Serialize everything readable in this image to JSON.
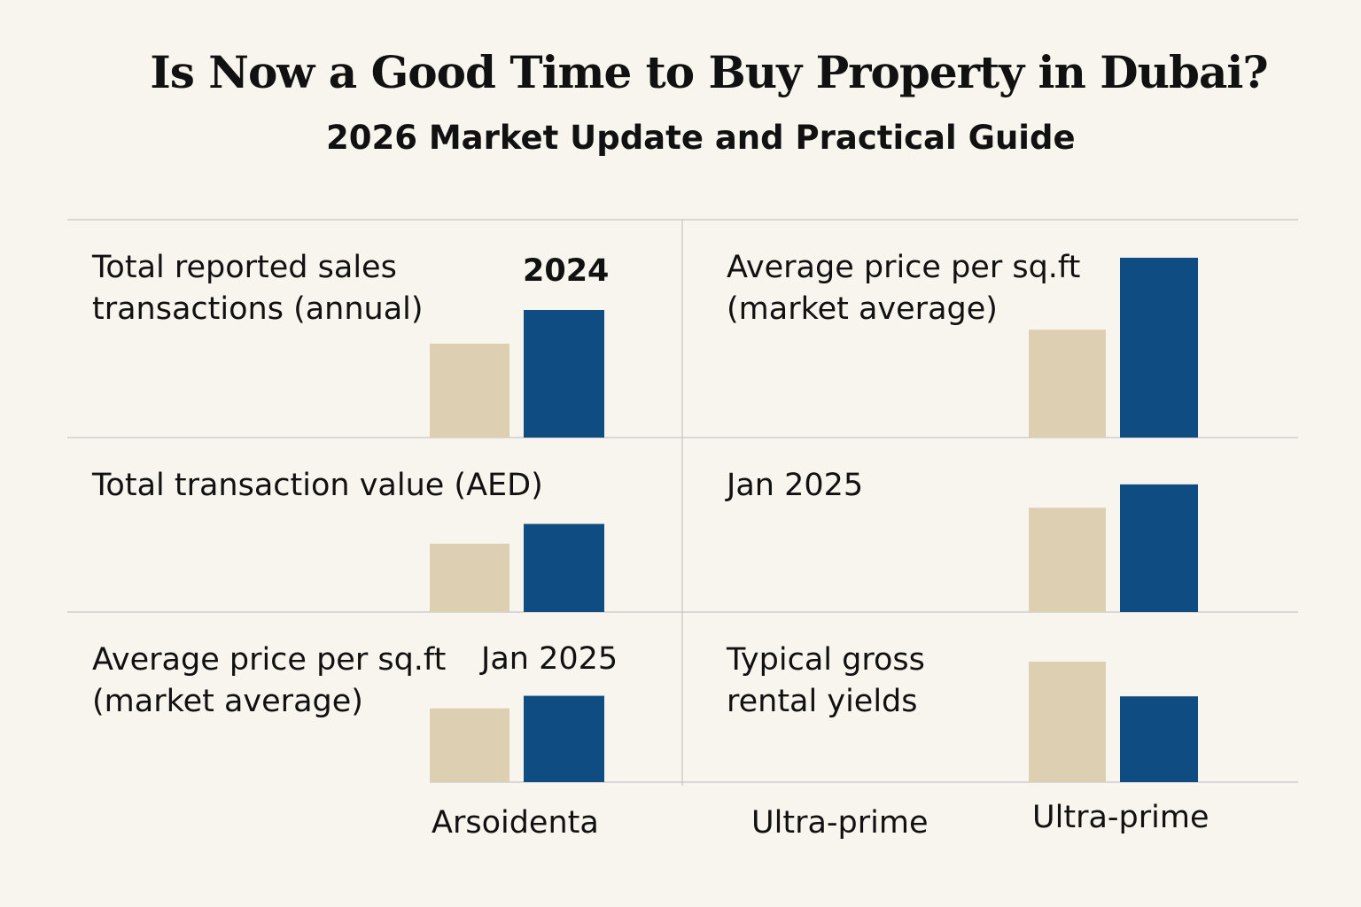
{
  "title": "Is Now a Good Time to Buy Property in Dubai?",
  "subtitle": "2026 Market Update and Practical Guide",
  "colors": {
    "bar_a": "#ddcfb2",
    "bar_b": "#0f4c81",
    "grid": "#bdbdbd",
    "background": "#f8f4ee"
  },
  "footer_labels": [
    "Arsoidenta",
    "Ultra-prime",
    "Ultra-prime"
  ],
  "chart_data": [
    {
      "type": "bar",
      "title": "Total reported sales\ntransactions (annual)",
      "annotation": "2024",
      "values": [
        0.53,
        0.72
      ]
    },
    {
      "type": "bar",
      "title": "Average price per sq.ft\n(market average)",
      "annotation": "",
      "values": [
        0.6,
        1.0
      ]
    },
    {
      "type": "bar",
      "title": "Total transaction value (AED)",
      "annotation": "",
      "values": [
        0.38,
        0.49
      ]
    },
    {
      "type": "bar",
      "title": "Jan 2025",
      "annotation": "",
      "values": [
        0.58,
        0.71
      ]
    },
    {
      "type": "bar",
      "title": "Average price per sq.ft\n(market average)",
      "annotation": "Jan 2025",
      "values": [
        0.41,
        0.48
      ]
    },
    {
      "type": "bar",
      "title": "Typical gross\nrental yields",
      "annotation": "",
      "values": [
        0.66,
        0.47
      ]
    }
  ]
}
